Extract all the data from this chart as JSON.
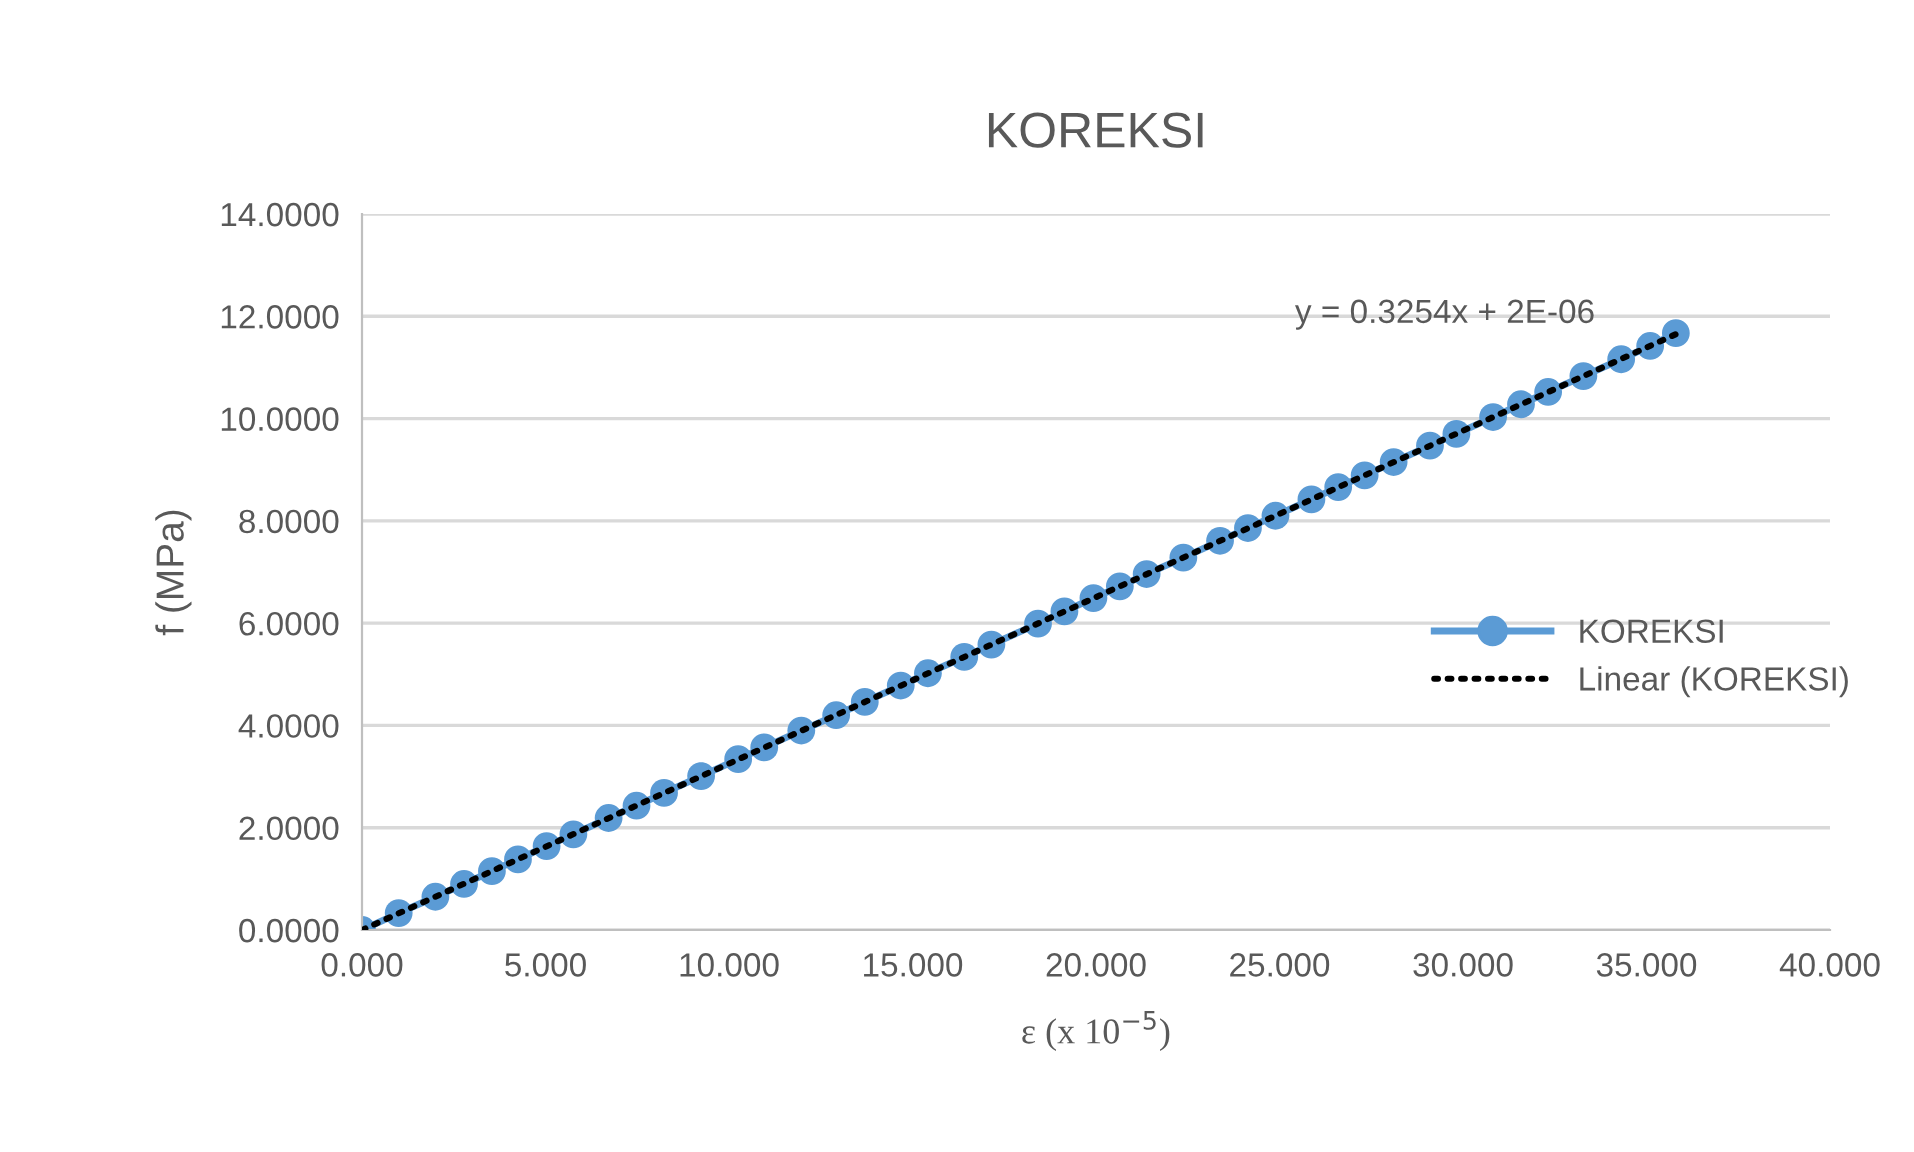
{
  "chart_data": {
    "type": "line",
    "title": "KOREKSI",
    "xlabel": "ε (x 10$^{−5}$)",
    "ylabel": "f (MPa)",
    "xlim": [
      0,
      40
    ],
    "ylim": [
      0,
      14
    ],
    "xticks": [
      {
        "value": 0,
        "label": "0.000"
      },
      {
        "value": 5,
        "label": "5.000"
      },
      {
        "value": 10,
        "label": "10.000"
      },
      {
        "value": 15,
        "label": "15.000"
      },
      {
        "value": 20,
        "label": "20.000"
      },
      {
        "value": 25,
        "label": "25.000"
      },
      {
        "value": 30,
        "label": "30.000"
      },
      {
        "value": 35,
        "label": "35.000"
      },
      {
        "value": 40,
        "label": "40.000"
      }
    ],
    "yticks": [
      {
        "value": 0,
        "label": "0.0000"
      },
      {
        "value": 2,
        "label": "2.0000"
      },
      {
        "value": 4,
        "label": "4.0000"
      },
      {
        "value": 6,
        "label": "6.0000"
      },
      {
        "value": 8,
        "label": "8.0000"
      },
      {
        "value": 10,
        "label": "10.0000"
      },
      {
        "value": 12,
        "label": "12.0000"
      },
      {
        "value": 14,
        "label": "14.0000"
      }
    ],
    "grid": "y",
    "legend": "right",
    "annotations": [
      "y = 0.3254x + 2E-06"
    ],
    "series": [
      {
        "name": "KOREKSI",
        "color": "#5b9bd5",
        "marker": "circle",
        "line_style": "solid",
        "x": [
          0,
          1.0,
          2.0,
          2.78,
          3.54,
          4.25,
          5.03,
          5.76,
          6.72,
          7.48,
          8.23,
          9.24,
          10.25,
          10.96,
          11.97,
          12.92,
          13.7,
          14.68,
          15.42,
          16.41,
          17.15,
          18.42,
          19.14,
          19.93,
          20.65,
          21.38,
          22.38,
          23.38,
          24.14,
          24.89,
          25.87,
          26.6,
          27.32,
          28.11,
          29.1,
          29.82,
          30.82,
          31.58,
          32.32,
          33.28,
          34.31,
          35.1,
          35.8
        ],
        "values": [
          0,
          0.33,
          0.65,
          0.9,
          1.15,
          1.38,
          1.64,
          1.87,
          2.19,
          2.43,
          2.68,
          3.01,
          3.34,
          3.57,
          3.9,
          4.2,
          4.46,
          4.78,
          5.02,
          5.34,
          5.58,
          5.99,
          6.23,
          6.49,
          6.72,
          6.96,
          7.28,
          7.61,
          7.86,
          8.1,
          8.42,
          8.66,
          8.89,
          9.15,
          9.47,
          9.7,
          10.03,
          10.28,
          10.52,
          10.83,
          11.16,
          11.42,
          11.67
        ]
      },
      {
        "name": "Linear (KOREKSI)",
        "type": "line",
        "color": "#000000",
        "line_style": "dotted",
        "x": [
          0,
          35.8
        ],
        "values": [
          0,
          11.65
        ]
      }
    ]
  }
}
